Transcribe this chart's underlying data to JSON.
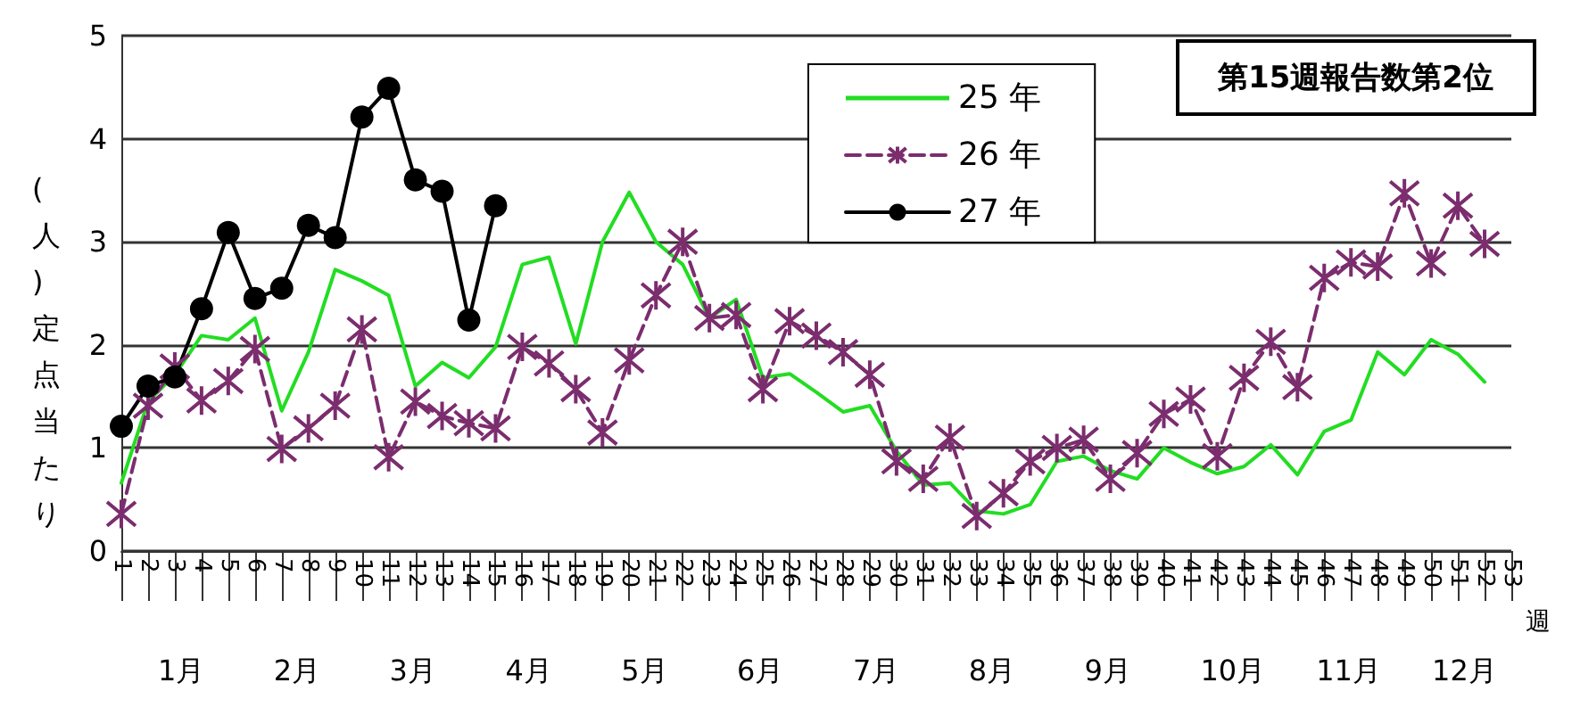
{
  "chart_data": {
    "type": "line",
    "ylabel": "(人)定点当たり",
    "xlabel": "週",
    "categories": [
      "1",
      "2",
      "3",
      "4",
      "5",
      "6",
      "7",
      "8",
      "9",
      "10",
      "11",
      "12",
      "13",
      "14",
      "15",
      "16",
      "17",
      "18",
      "19",
      "20",
      "21",
      "22",
      "23",
      "24",
      "25",
      "26",
      "27",
      "28",
      "29",
      "30",
      "31",
      "32",
      "33",
      "34",
      "35",
      "36",
      "37",
      "38",
      "39",
      "40",
      "41",
      "42",
      "43",
      "44",
      "45",
      "46",
      "47",
      "48",
      "49",
      "50",
      "51",
      "52",
      "53"
    ],
    "series": [
      {
        "name": "25 年",
        "color": "#22dd22",
        "marker": "none",
        "line_style": "solid",
        "values": [
          0.66,
          1.45,
          1.71,
          2.09,
          2.05,
          2.26,
          1.36,
          1.93,
          2.73,
          2.62,
          2.48,
          1.6,
          1.83,
          1.68,
          1.98,
          2.78,
          2.85,
          2.01,
          3.0,
          3.48,
          3.0,
          2.78,
          2.26,
          2.44,
          1.68,
          1.72,
          1.54,
          1.35,
          1.41,
          0.97,
          0.64,
          0.66,
          0.39,
          0.36,
          0.45,
          0.87,
          0.92,
          0.78,
          0.7,
          1.0,
          0.86,
          0.75,
          0.82,
          1.03,
          0.74,
          1.16,
          1.27,
          1.93,
          1.71,
          2.05,
          1.91,
          1.64,
          null
        ]
      },
      {
        "name": "26 年",
        "color": "#7b2d6e",
        "marker": "cross",
        "line_style": "dashed",
        "values": [
          0.36,
          1.41,
          1.79,
          1.46,
          1.65,
          1.96,
          0.99,
          1.19,
          1.41,
          2.15,
          0.91,
          1.45,
          1.31,
          1.24,
          1.19,
          1.98,
          1.82,
          1.57,
          1.15,
          1.85,
          2.48,
          3.0,
          2.26,
          2.29,
          1.57,
          2.23,
          2.09,
          1.93,
          1.71,
          0.87,
          0.7,
          1.1,
          0.34,
          0.56,
          0.87,
          1.0,
          1.08,
          0.7,
          0.95,
          1.33,
          1.47,
          0.92,
          1.68,
          2.03,
          1.59,
          2.65,
          2.8,
          2.76,
          3.47,
          2.79,
          3.35,
          2.98,
          null
        ]
      },
      {
        "name": "27 年",
        "color": "#000000",
        "marker": "circle",
        "line_style": "solid",
        "values": [
          1.21,
          1.6,
          1.69,
          2.35,
          3.09,
          2.45,
          2.55,
          3.16,
          3.04,
          4.21,
          4.49,
          3.6,
          3.49,
          2.24,
          3.35,
          null,
          null,
          null,
          null,
          null,
          null,
          null,
          null,
          null,
          null,
          null,
          null,
          null,
          null,
          null,
          null,
          null,
          null,
          null,
          null,
          null,
          null,
          null,
          null,
          null,
          null,
          null,
          null,
          null,
          null,
          null,
          null,
          null,
          null,
          null,
          null,
          null,
          null
        ]
      }
    ],
    "ylim": [
      0,
      5
    ],
    "yticks": [
      0,
      1,
      2,
      3,
      4,
      5
    ],
    "grid": "y",
    "legend": "top",
    "annotations": [
      "第15週報告数第2位",
      "1月",
      "2月",
      "3月",
      "4月",
      "5月",
      "6月",
      "7月",
      "8月",
      "9月",
      "10月",
      "11月",
      "12月"
    ]
  }
}
